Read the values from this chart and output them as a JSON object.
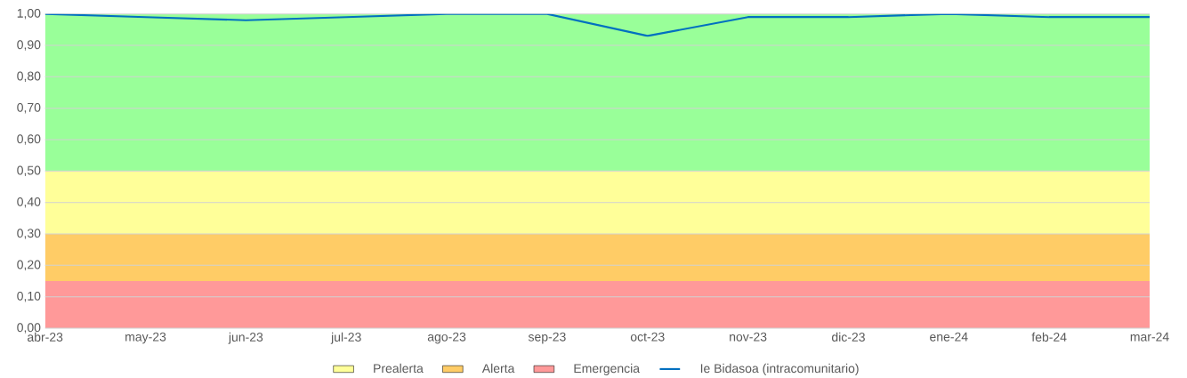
{
  "chart_data": {
    "type": "area",
    "stacked": true,
    "categories": [
      "abr-23",
      "may-23",
      "jun-23",
      "jul-23",
      "ago-23",
      "sep-23",
      "oct-23",
      "nov-23",
      "dic-23",
      "ene-24",
      "feb-24",
      "mar-24"
    ],
    "series": [
      {
        "name": "Emergencia",
        "color": "#ff9999",
        "values": [
          0.15,
          0.15,
          0.15,
          0.15,
          0.15,
          0.15,
          0.15,
          0.15,
          0.15,
          0.15,
          0.15,
          0.15
        ]
      },
      {
        "name": "Alerta",
        "color": "#ffcc66",
        "values": [
          0.15,
          0.15,
          0.15,
          0.15,
          0.15,
          0.15,
          0.15,
          0.15,
          0.15,
          0.15,
          0.15,
          0.15
        ]
      },
      {
        "name": "Prealerta",
        "color": "#ffff99",
        "values": [
          0.2,
          0.2,
          0.2,
          0.2,
          0.2,
          0.2,
          0.2,
          0.2,
          0.2,
          0.2,
          0.2,
          0.2
        ]
      },
      {
        "color": "#99ff99",
        "values": [
          0.5,
          0.5,
          0.5,
          0.5,
          0.5,
          0.5,
          0.5,
          0.5,
          0.5,
          0.5,
          0.5,
          0.5
        ]
      },
      {
        "name": "Ie Bidasoa (intracomunitario)",
        "type": "line",
        "color": "#0070c0",
        "values": [
          1.0,
          0.99,
          0.98,
          0.99,
          1.0,
          1.0,
          0.93,
          0.99,
          0.99,
          1.0,
          0.99,
          0.99
        ]
      }
    ],
    "ylim": [
      0,
      1
    ],
    "yticks": [
      {
        "value": 0,
        "label": "0,00"
      },
      {
        "value": 0.1,
        "label": "0,10"
      },
      {
        "value": 0.2,
        "label": "0,20"
      },
      {
        "value": 0.3,
        "label": "0,30"
      },
      {
        "value": 0.4,
        "label": "0,40"
      },
      {
        "value": 0.5,
        "label": "0,50"
      },
      {
        "value": 0.6,
        "label": "0,60"
      },
      {
        "value": 0.7,
        "label": "0,70"
      },
      {
        "value": 0.8,
        "label": "0,80"
      },
      {
        "value": 0.9,
        "label": "0,90"
      },
      {
        "value": 1,
        "label": "1,00"
      }
    ],
    "grid": "y",
    "legend": "bottom"
  }
}
